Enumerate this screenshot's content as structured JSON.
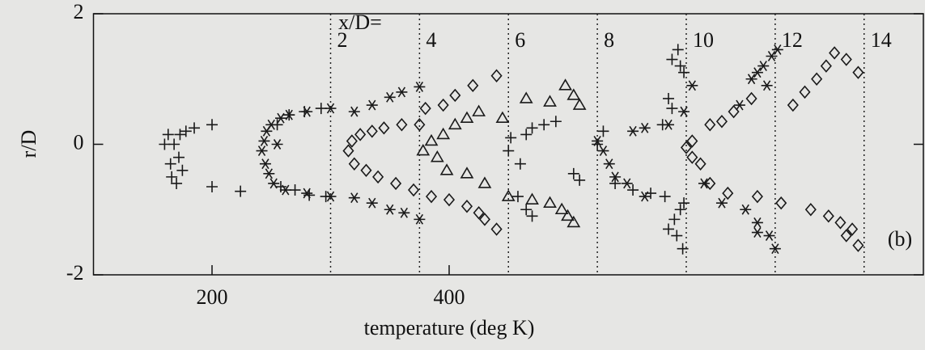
{
  "chart_data": {
    "type": "scatter",
    "x_label": "temperature (deg K)",
    "y_label": "r/D",
    "xlim": [
      100,
      800
    ],
    "ylim": [
      -2,
      2
    ],
    "xticks": [
      200,
      400
    ],
    "yticks": [
      2,
      0,
      -2
    ],
    "vlines_title": "x/D=",
    "vlines": [
      {
        "value": 300,
        "label": "2"
      },
      {
        "value": 375,
        "label": "4"
      },
      {
        "value": 450,
        "label": "6"
      },
      {
        "value": 525,
        "label": "8"
      },
      {
        "value": 600,
        "label": "10"
      },
      {
        "value": 675,
        "label": "12"
      },
      {
        "value": 750,
        "label": "14"
      }
    ],
    "annotation": "(b)",
    "series": [
      {
        "marker": "plus",
        "color": "#1a1a1a",
        "x": [
          160,
          163,
          165,
          166,
          168,
          170,
          172,
          173,
          175,
          178,
          185,
          200,
          200,
          224,
          255,
          265,
          278,
          292,
          258,
          270,
          282,
          296,
          450,
          452,
          460,
          465,
          470,
          480,
          490,
          458,
          465,
          470,
          505,
          510,
          525,
          530,
          540,
          555,
          570,
          582,
          595,
          590,
          585,
          592,
          597,
          598,
          588,
          593,
          595,
          598,
          585,
          588,
          580
        ],
        "values": [
          0,
          0.15,
          -0.3,
          -0.5,
          0,
          -0.6,
          -0.2,
          0.15,
          -0.4,
          0.2,
          0.25,
          0.3,
          -0.65,
          -0.72,
          0.3,
          0.45,
          0.5,
          0.55,
          -0.65,
          -0.7,
          -0.78,
          -0.8,
          -0.1,
          0.1,
          -0.3,
          0.15,
          0.25,
          0.3,
          0.35,
          -0.8,
          -1.0,
          -1.1,
          -0.45,
          -0.55,
          0,
          0.2,
          -0.6,
          -0.7,
          -0.75,
          -0.8,
          -1.0,
          -1.15,
          -1.3,
          -1.4,
          -1.6,
          -0.9,
          1.3,
          1.45,
          1.2,
          1.1,
          0.7,
          0.55,
          0.3
        ]
      },
      {
        "marker": "asterisk",
        "color": "#1a1a1a",
        "x": [
          242,
          244,
          245,
          246,
          248,
          250,
          252,
          255,
          258,
          265,
          280,
          300,
          320,
          335,
          350,
          360,
          375,
          262,
          280,
          300,
          320,
          335,
          350,
          362,
          375,
          525,
          530,
          535,
          540,
          550,
          565,
          555,
          565,
          585,
          598,
          605,
          615,
          630,
          650,
          660,
          670,
          675,
          660,
          645,
          655,
          665,
          672,
          677,
          668,
          660
        ],
        "values": [
          -0.1,
          0.05,
          -0.3,
          0.2,
          -0.45,
          0.3,
          -0.6,
          0,
          0.4,
          0.45,
          0.5,
          0.55,
          0.5,
          0.6,
          0.72,
          0.8,
          0.88,
          -0.7,
          -0.75,
          -0.8,
          -0.82,
          -0.9,
          -1.0,
          -1.05,
          -1.15,
          0.05,
          -0.1,
          -0.3,
          -0.5,
          -0.6,
          -0.8,
          0.2,
          0.25,
          0.3,
          0.5,
          0.9,
          -0.6,
          -0.9,
          -1.0,
          -1.2,
          -1.4,
          -1.6,
          -1.35,
          0.6,
          1.0,
          1.2,
          1.35,
          1.45,
          0.9,
          1.1
        ]
      },
      {
        "marker": "diamond",
        "color": "#1a1a1a",
        "x": [
          315,
          318,
          320,
          325,
          330,
          335,
          345,
          360,
          375,
          380,
          395,
          405,
          420,
          440,
          340,
          355,
          370,
          385,
          400,
          415,
          425,
          430,
          440,
          600,
          605,
          605,
          612,
          620,
          630,
          640,
          655,
          690,
          700,
          710,
          718,
          725,
          735,
          745,
          620,
          635,
          660,
          680,
          705,
          720,
          730,
          735,
          745,
          740
        ],
        "values": [
          -0.1,
          0.05,
          -0.3,
          0.15,
          -0.4,
          0.2,
          0.25,
          0.3,
          0.3,
          0.55,
          0.6,
          0.75,
          0.9,
          1.05,
          -0.5,
          -0.6,
          -0.7,
          -0.8,
          -0.85,
          -0.95,
          -1.05,
          -1.15,
          -1.3,
          -0.05,
          0.05,
          -0.2,
          -0.3,
          0.3,
          0.35,
          0.5,
          0.7,
          0.6,
          0.8,
          1.0,
          1.2,
          1.4,
          1.3,
          1.1,
          -0.6,
          -0.75,
          -0.8,
          -0.9,
          -1.0,
          -1.1,
          -1.2,
          -1.4,
          -1.55,
          -1.3
        ]
      },
      {
        "marker": "triangle",
        "color": "#1a1a1a",
        "x": [
          378,
          385,
          390,
          395,
          405,
          415,
          425,
          445,
          465,
          485,
          498,
          505,
          510,
          398,
          415,
          430,
          450,
          470,
          485,
          495,
          500,
          505
        ],
        "values": [
          -0.1,
          0.05,
          -0.2,
          0.15,
          0.3,
          0.4,
          0.5,
          0.4,
          0.7,
          0.65,
          0.9,
          0.75,
          0.6,
          -0.4,
          -0.45,
          -0.6,
          -0.8,
          -0.85,
          -0.9,
          -1.0,
          -1.1,
          -1.2
        ]
      }
    ]
  }
}
